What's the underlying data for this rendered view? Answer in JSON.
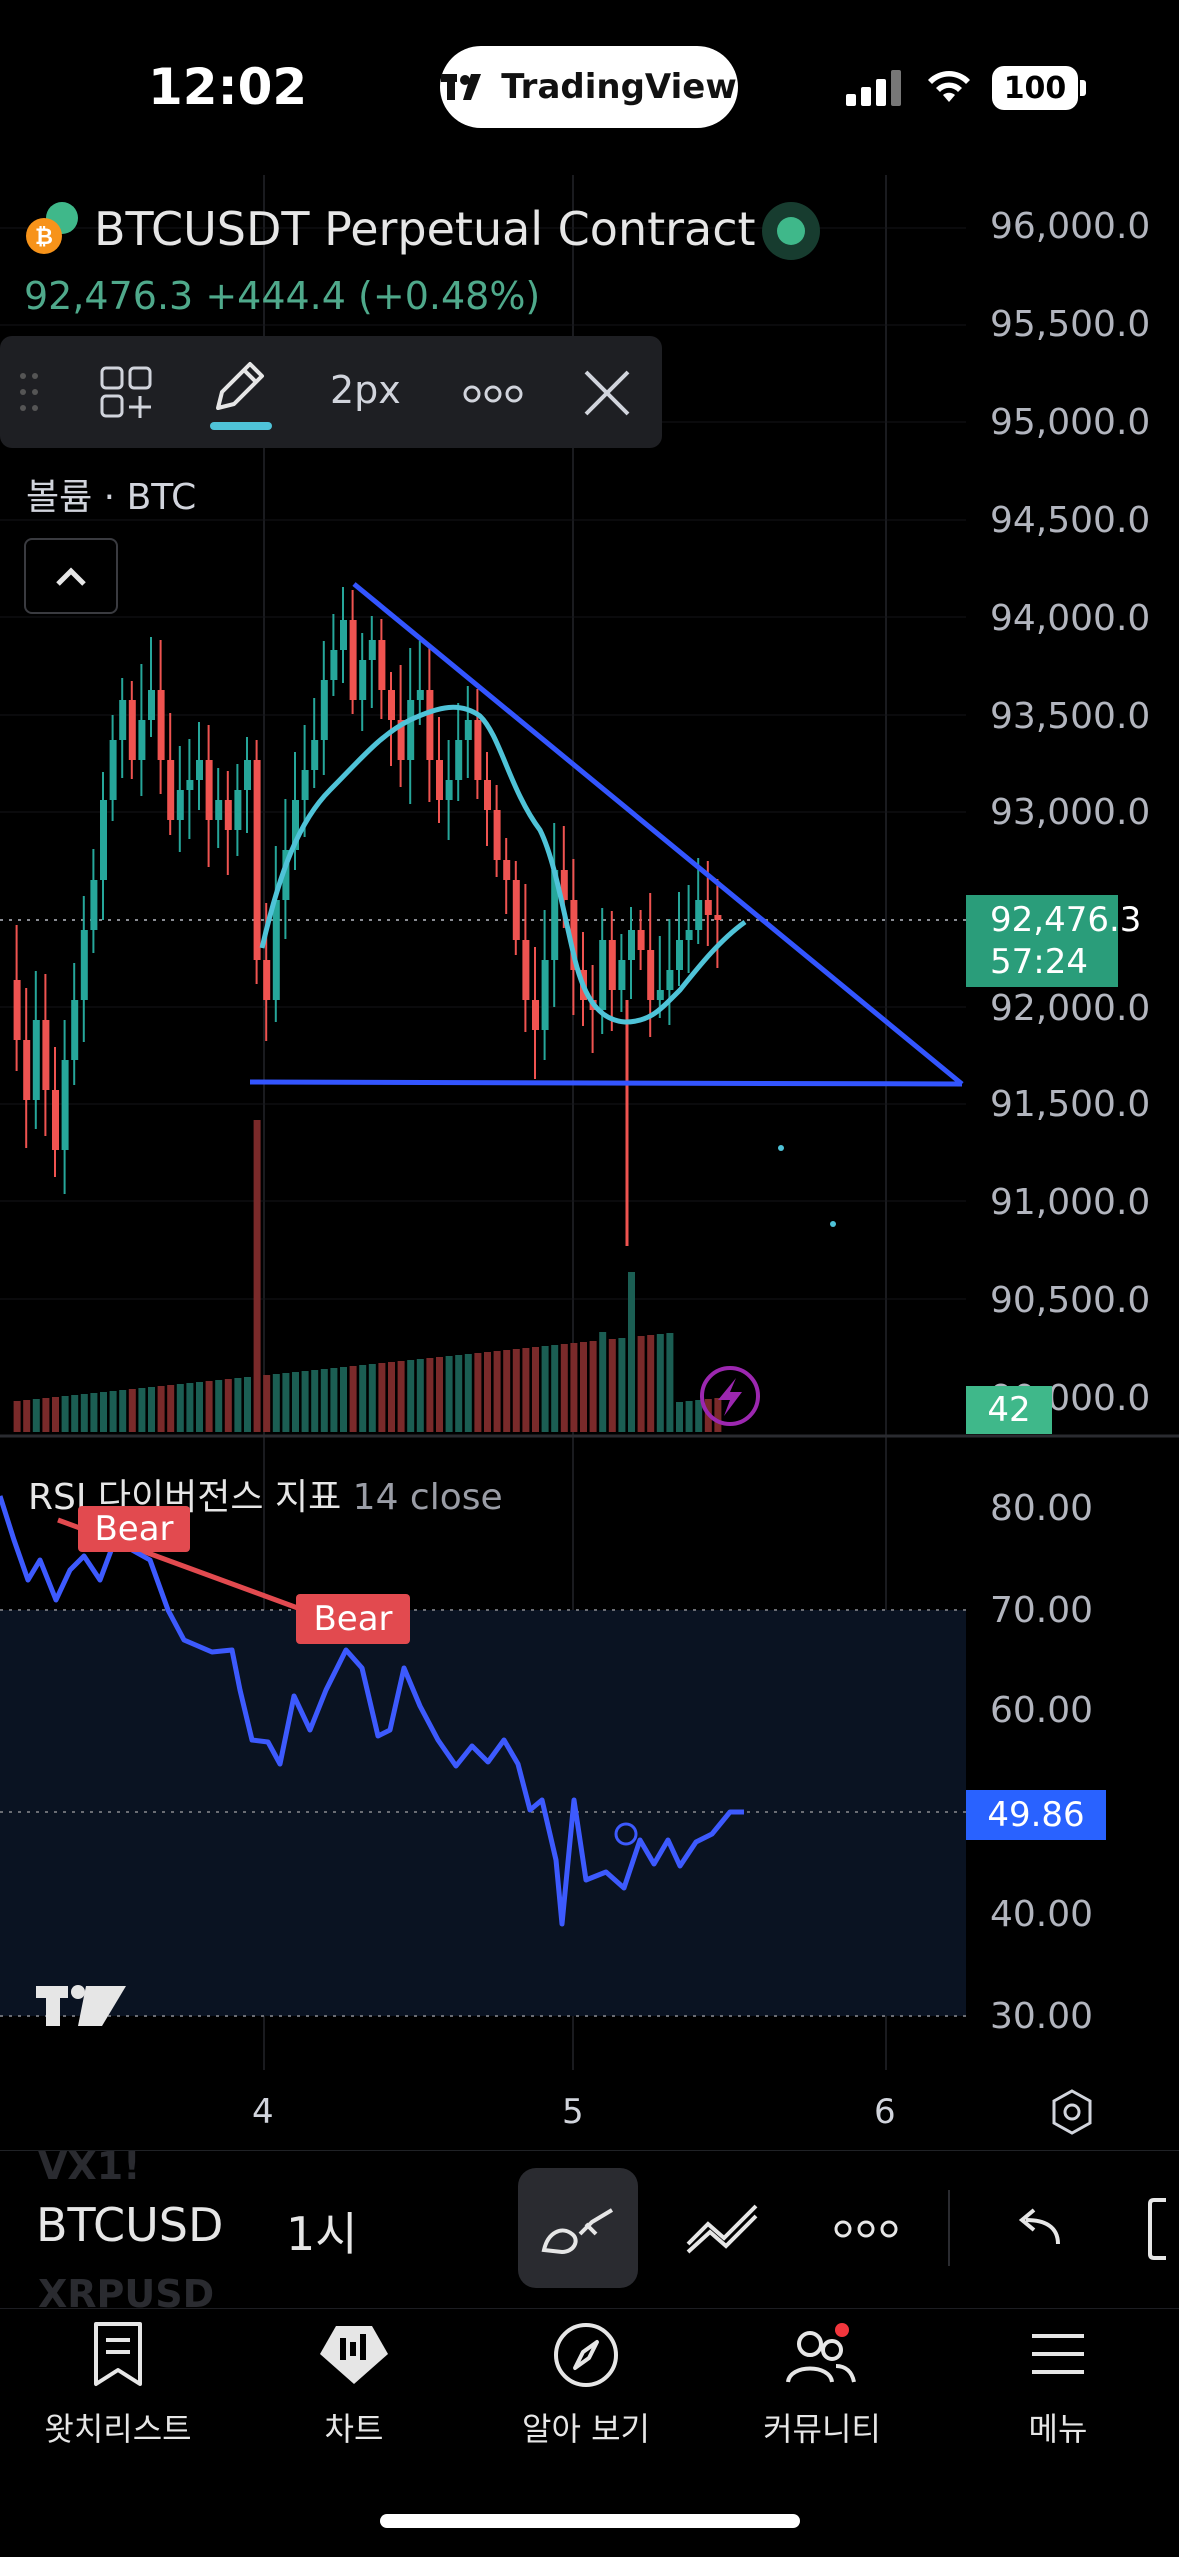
{
  "status_bar": {
    "time": "12:02",
    "app_pill": "TradingView",
    "battery": "100"
  },
  "header": {
    "symbol_title": "BTCUSDT Perpetual Contract",
    "last_price": "92,476.3",
    "change": "+444.4",
    "change_pct": "(+0.48%)"
  },
  "drawing_toolbar": {
    "brush_size": "2px"
  },
  "volume_indicator": {
    "label": "볼륨 · BTC"
  },
  "price_axis": {
    "ticks": [
      "96,000.0",
      "95,500.0",
      "95,000.0",
      "94,500.0",
      "94,000.0",
      "93,500.0",
      "93,000.0",
      "92,000.0",
      "91,500.0",
      "91,000.0",
      "90,500.0",
      "90,000.0"
    ],
    "current_price": "92,476.3",
    "countdown": "57:24",
    "volume_value": "42"
  },
  "rsi_indicator": {
    "title": "RSI 다이버전스 지표",
    "params": "14 close",
    "ticks": [
      "80.00",
      "70.00",
      "60.00",
      "40.00",
      "30.00"
    ],
    "current_value": "49.86",
    "divergence_labels": [
      "Bear",
      "Bear"
    ]
  },
  "time_axis": {
    "labels": [
      "4",
      "5",
      "6"
    ]
  },
  "symbol_bar": {
    "ghost_prev": "VX1!",
    "symbol": "BTCUSD",
    "ghost_next": "XRPUSD",
    "interval": "1시"
  },
  "tab_bar": {
    "items": [
      {
        "label": "왓치리스트",
        "icon": "watchlist-icon"
      },
      {
        "label": "차트",
        "icon": "chart-icon"
      },
      {
        "label": "알아 보기",
        "icon": "compass-icon"
      },
      {
        "label": "커뮤니티",
        "icon": "community-icon"
      },
      {
        "label": "메뉴",
        "icon": "menu-icon"
      }
    ]
  },
  "colors": {
    "bull": "#26a69a",
    "bear": "#ef5350",
    "trendline": "#3355ff",
    "ma": "#4fc3d8",
    "rsi": "#3d5afe",
    "accent_green": "#3fb88a"
  }
}
